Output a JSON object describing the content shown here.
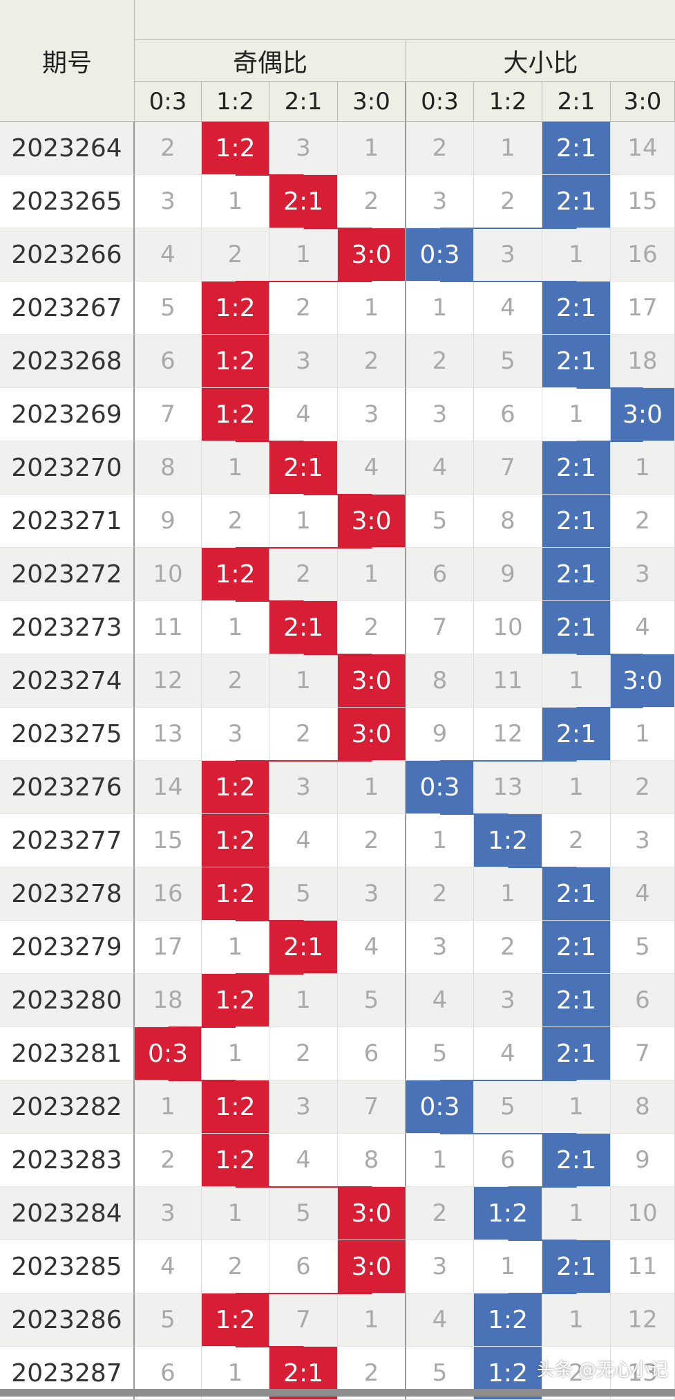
{
  "header": {
    "period_label": "期号",
    "group1_label": "奇偶比",
    "group2_label": "大小比",
    "sub_labels": [
      "0:3",
      "1:2",
      "2:1",
      "3:0"
    ]
  },
  "colors": {
    "group1_hit": "#d71e35",
    "group2_hit": "#4a72b6"
  },
  "rows": [
    {
      "period": "2023264",
      "oe": [
        "2",
        "1:2",
        "3",
        "1"
      ],
      "bs": [
        "2",
        "1",
        "2:1",
        "14"
      ]
    },
    {
      "period": "2023265",
      "oe": [
        "3",
        "1",
        "2:1",
        "2"
      ],
      "bs": [
        "3",
        "2",
        "2:1",
        "15"
      ]
    },
    {
      "period": "2023266",
      "oe": [
        "4",
        "2",
        "1",
        "3:0"
      ],
      "bs": [
        "0:3",
        "3",
        "1",
        "16"
      ]
    },
    {
      "period": "2023267",
      "oe": [
        "5",
        "1:2",
        "2",
        "1"
      ],
      "bs": [
        "1",
        "4",
        "2:1",
        "17"
      ]
    },
    {
      "period": "2023268",
      "oe": [
        "6",
        "1:2",
        "3",
        "2"
      ],
      "bs": [
        "2",
        "5",
        "2:1",
        "18"
      ]
    },
    {
      "period": "2023269",
      "oe": [
        "7",
        "1:2",
        "4",
        "3"
      ],
      "bs": [
        "3",
        "6",
        "1",
        "3:0"
      ]
    },
    {
      "period": "2023270",
      "oe": [
        "8",
        "1",
        "2:1",
        "4"
      ],
      "bs": [
        "4",
        "7",
        "2:1",
        "1"
      ]
    },
    {
      "period": "2023271",
      "oe": [
        "9",
        "2",
        "1",
        "3:0"
      ],
      "bs": [
        "5",
        "8",
        "2:1",
        "2"
      ]
    },
    {
      "period": "2023272",
      "oe": [
        "10",
        "1:2",
        "2",
        "1"
      ],
      "bs": [
        "6",
        "9",
        "2:1",
        "3"
      ]
    },
    {
      "period": "2023273",
      "oe": [
        "11",
        "1",
        "2:1",
        "2"
      ],
      "bs": [
        "7",
        "10",
        "2:1",
        "4"
      ]
    },
    {
      "period": "2023274",
      "oe": [
        "12",
        "2",
        "1",
        "3:0"
      ],
      "bs": [
        "8",
        "11",
        "1",
        "3:0"
      ]
    },
    {
      "period": "2023275",
      "oe": [
        "13",
        "3",
        "2",
        "3:0"
      ],
      "bs": [
        "9",
        "12",
        "2:1",
        "1"
      ]
    },
    {
      "period": "2023276",
      "oe": [
        "14",
        "1:2",
        "3",
        "1"
      ],
      "bs": [
        "0:3",
        "13",
        "1",
        "2"
      ]
    },
    {
      "period": "2023277",
      "oe": [
        "15",
        "1:2",
        "4",
        "2"
      ],
      "bs": [
        "1",
        "1:2",
        "2",
        "3"
      ]
    },
    {
      "period": "2023278",
      "oe": [
        "16",
        "1:2",
        "5",
        "3"
      ],
      "bs": [
        "2",
        "1",
        "2:1",
        "4"
      ]
    },
    {
      "period": "2023279",
      "oe": [
        "17",
        "1",
        "2:1",
        "4"
      ],
      "bs": [
        "3",
        "2",
        "2:1",
        "5"
      ]
    },
    {
      "period": "2023280",
      "oe": [
        "18",
        "1:2",
        "1",
        "5"
      ],
      "bs": [
        "4",
        "3",
        "2:1",
        "6"
      ]
    },
    {
      "period": "2023281",
      "oe": [
        "0:3",
        "1",
        "2",
        "6"
      ],
      "bs": [
        "5",
        "4",
        "2:1",
        "7"
      ]
    },
    {
      "period": "2023282",
      "oe": [
        "1",
        "1:2",
        "3",
        "7"
      ],
      "bs": [
        "0:3",
        "5",
        "1",
        "8"
      ]
    },
    {
      "period": "2023283",
      "oe": [
        "2",
        "1:2",
        "4",
        "8"
      ],
      "bs": [
        "1",
        "6",
        "2:1",
        "9"
      ]
    },
    {
      "period": "2023284",
      "oe": [
        "3",
        "1",
        "5",
        "3:0"
      ],
      "bs": [
        "2",
        "1:2",
        "1",
        "10"
      ]
    },
    {
      "period": "2023285",
      "oe": [
        "4",
        "2",
        "6",
        "3:0"
      ],
      "bs": [
        "3",
        "1",
        "2:1",
        "11"
      ]
    },
    {
      "period": "2023286",
      "oe": [
        "5",
        "1:2",
        "7",
        "1"
      ],
      "bs": [
        "4",
        "1:2",
        "1",
        "12"
      ]
    },
    {
      "period": "2023287",
      "oe": [
        "6",
        "1",
        "2:1",
        "2"
      ],
      "bs": [
        "5",
        "1:2",
        "2",
        "13"
      ]
    }
  ],
  "watermark": "头条 @无心小记"
}
